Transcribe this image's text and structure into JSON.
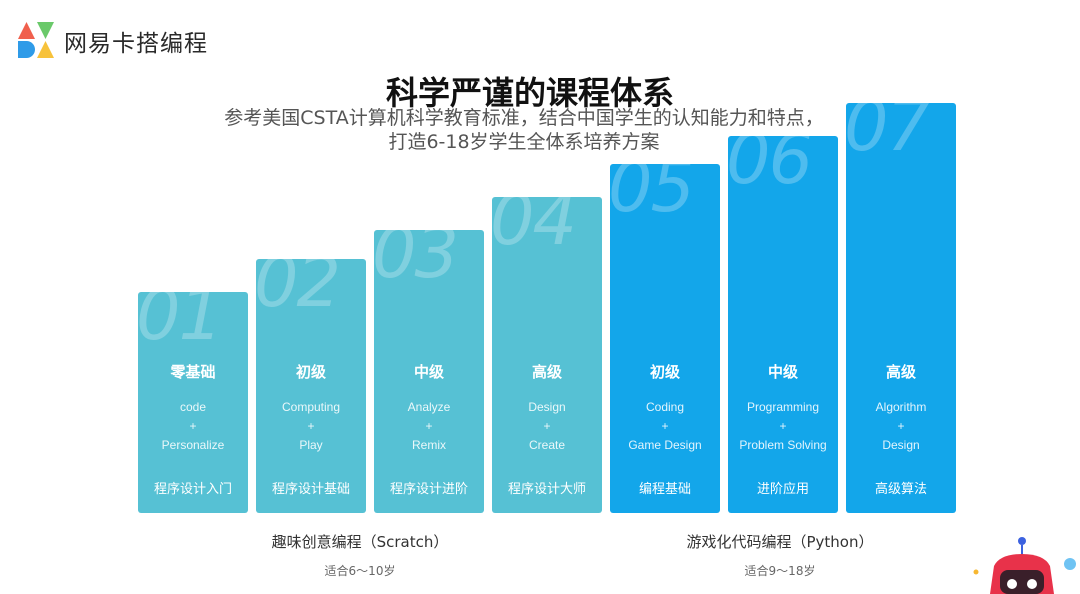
{
  "brand": {
    "name": "网易卡搭编程"
  },
  "heading": {
    "title": "科学严谨的课程体系",
    "subtitle_line1": "参考美国CSTA计算机科学教育标准，结合中国学生的认知能力和特点，",
    "subtitle_line2": "打造6-18岁学生全体系培养方案"
  },
  "columns": [
    {
      "num": "01",
      "level": "零基础",
      "en1": "code",
      "plus": "+",
      "en2": "Personalize",
      "course": "程序设计入门",
      "height_fraction": 0.54
    },
    {
      "num": "02",
      "level": "初级",
      "en1": "Computing",
      "plus": "+",
      "en2": "Play",
      "course": "程序设计基础",
      "height_fraction": 0.62
    },
    {
      "num": "03",
      "level": "中级",
      "en1": "Analyze",
      "plus": "+",
      "en2": "Remix",
      "course": "程序设计进阶",
      "height_fraction": 0.69
    },
    {
      "num": "04",
      "level": "高级",
      "en1": "Design",
      "plus": "+",
      "en2": "Create",
      "course": "程序设计大师",
      "height_fraction": 0.77
    },
    {
      "num": "05",
      "level": "初级",
      "en1": "Coding",
      "plus": "+",
      "en2": "Game Design",
      "course": "编程基础",
      "height_fraction": 0.85
    },
    {
      "num": "06",
      "level": "中级",
      "en1": "Programming",
      "plus": "+",
      "en2": "Problem Solving",
      "course": "进阶应用",
      "height_fraction": 0.92
    },
    {
      "num": "07",
      "level": "高级",
      "en1": "Algorithm",
      "plus": "+",
      "en2": "Design",
      "course": "高级算法",
      "height_fraction": 1.0
    }
  ],
  "groups": [
    {
      "name": "趣味创意编程（Scratch）",
      "age": "适合6～10岁"
    },
    {
      "name": "游戏化代码编程（Python）",
      "age": "适合9～18岁"
    }
  ],
  "colors": {
    "scratch": "#56c1d4",
    "python": "#13a6ea"
  }
}
